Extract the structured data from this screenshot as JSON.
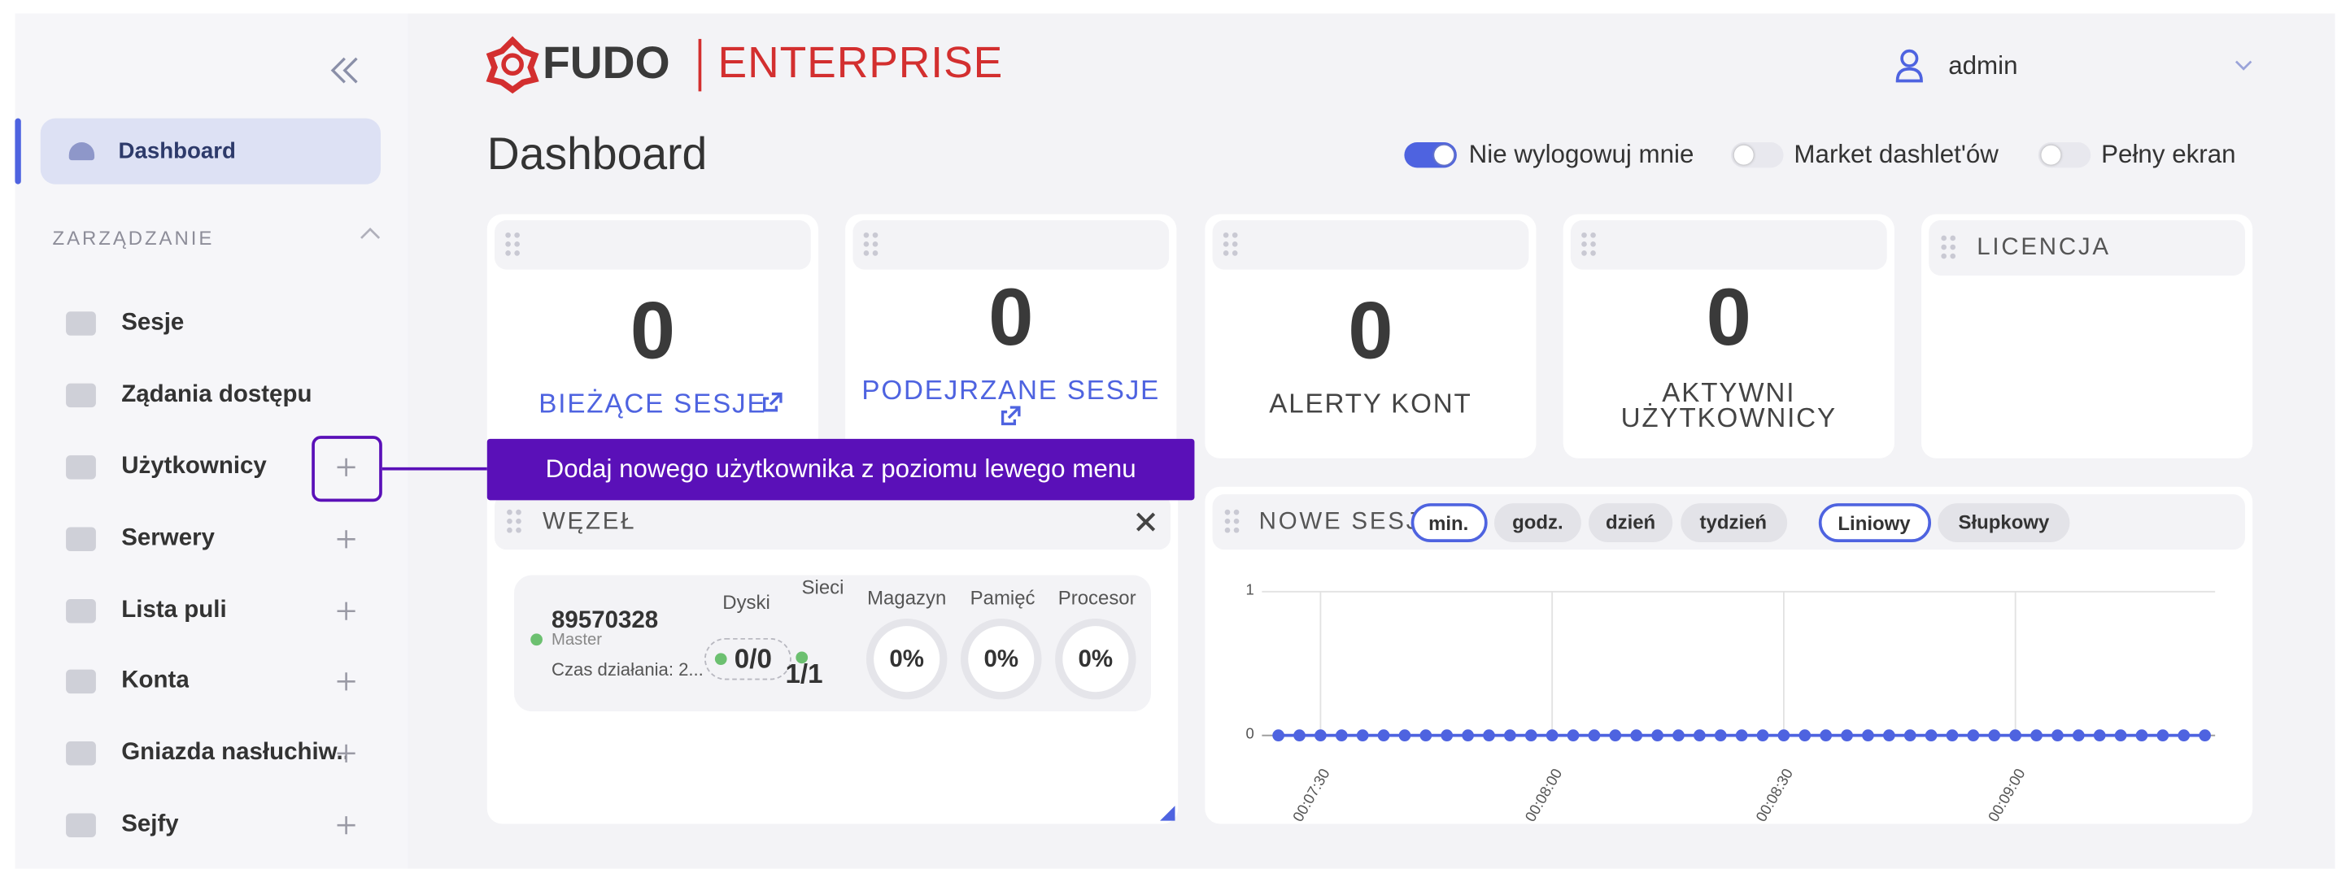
{
  "header": {
    "brand": "FUDO",
    "product": "ENTERPRISE",
    "user": "admin"
  },
  "sidebar": {
    "active": "Dashboard",
    "section": "ZARZĄDZANIE",
    "menu": [
      {
        "label": "Sesje",
        "add": false
      },
      {
        "label": "Żądania dostępu",
        "add": false
      },
      {
        "label": "Użytkownicy",
        "add": true
      },
      {
        "label": "Serwery",
        "add": true
      },
      {
        "label": "Lista puli",
        "add": true
      },
      {
        "label": "Konta",
        "add": true
      },
      {
        "label": "Gniazda nasłuchiw...",
        "add": true
      },
      {
        "label": "Sejfy",
        "add": true
      }
    ]
  },
  "page": {
    "title": "Dashboard",
    "toggles": [
      {
        "label": "Nie wylogowuj mnie",
        "on": true
      },
      {
        "label": "Market dashlet'ów",
        "on": false
      },
      {
        "label": "Pełny ekran",
        "on": false
      }
    ]
  },
  "tiles": [
    {
      "value": 0,
      "label": "BIEŻĄCE SESJE",
      "link": true
    },
    {
      "value": 0,
      "label": "PODEJRZANE SESJE",
      "link": true
    },
    {
      "value": 0,
      "label": "ALERTY KONT",
      "link": false
    },
    {
      "value": 0,
      "label": "AKTYWNI UŻYTKOWNICY",
      "link": false
    }
  ],
  "license": {
    "title": "LICENCJA"
  },
  "tooltip": "Dodaj nowego użytkownika z poziomu lewego menu",
  "node": {
    "title": "WĘZEŁ",
    "id": "89570328",
    "role": "Master",
    "uptime": "Czas działania: 2...",
    "columns": [
      "Dyski",
      "Sieci",
      "Magazyn",
      "Pamięć",
      "Procesor"
    ],
    "disks": "0/0",
    "networks": "1/1",
    "gauges": [
      "0%",
      "0%",
      "0%"
    ]
  },
  "sessions_chart": {
    "title": "NOWE SESJE",
    "ranges": [
      "min.",
      "godz.",
      "dzień",
      "tydzień"
    ],
    "selected_range": 0,
    "modes": [
      "Liniowy",
      "Słupkowy"
    ],
    "selected_mode": 0,
    "color": "#4e63e0",
    "ylim": [
      0,
      1
    ],
    "yticks": [
      0,
      1
    ],
    "x_labels": [
      "00:07:30",
      "00:08:00",
      "00:08:30",
      "00:09:00"
    ],
    "values": [
      0,
      0,
      0,
      0,
      0,
      0,
      0,
      0,
      0,
      0,
      0,
      0,
      0,
      0,
      0,
      0,
      0,
      0,
      0,
      0,
      0,
      0,
      0,
      0,
      0,
      0,
      0,
      0,
      0,
      0,
      0,
      0,
      0,
      0,
      0,
      0,
      0,
      0,
      0,
      0,
      0,
      0,
      0,
      0,
      0
    ]
  }
}
